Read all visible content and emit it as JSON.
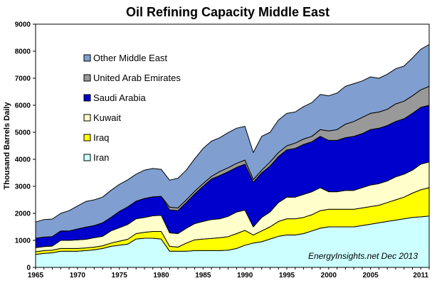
{
  "chart_data": {
    "type": "area",
    "stacked": true,
    "title": "Oil Refining Capacity Middle East",
    "ylabel": "Thousand Barrels Daily",
    "xlabel": "",
    "xlim": [
      1965,
      2012
    ],
    "ylim": [
      0,
      9000
    ],
    "yticks": [
      0,
      1000,
      2000,
      3000,
      4000,
      5000,
      6000,
      7000,
      8000,
      9000
    ],
    "xticks": [
      1965,
      1970,
      1975,
      1980,
      1985,
      1990,
      1995,
      2000,
      2005,
      2011
    ],
    "grid": false,
    "legend_position": "top-left",
    "annotation": "EnergyInsights.net  Dec 2013",
    "x": [
      1965,
      1966,
      1967,
      1968,
      1969,
      1970,
      1971,
      1972,
      1973,
      1974,
      1975,
      1976,
      1977,
      1978,
      1979,
      1980,
      1981,
      1982,
      1983,
      1984,
      1985,
      1986,
      1987,
      1988,
      1989,
      1990,
      1991,
      1992,
      1993,
      1994,
      1995,
      1996,
      1997,
      1998,
      1999,
      2000,
      2001,
      2002,
      2003,
      2004,
      2005,
      2006,
      2007,
      2008,
      2009,
      2010,
      2011,
      2012
    ],
    "series": [
      {
        "name": "Iran",
        "color": "#ccffff",
        "values": [
          480,
          520,
          540,
          600,
          600,
          600,
          620,
          650,
          700,
          780,
          820,
          860,
          1050,
          1080,
          1080,
          1050,
          600,
          600,
          600,
          620,
          620,
          620,
          620,
          640,
          700,
          820,
          900,
          950,
          1050,
          1150,
          1200,
          1200,
          1250,
          1350,
          1450,
          1500,
          1500,
          1500,
          1500,
          1550,
          1600,
          1650,
          1700,
          1750,
          1800,
          1850,
          1870,
          1900
        ]
      },
      {
        "name": "Iraq",
        "color": "#ffff00",
        "values": [
          100,
          100,
          100,
          100,
          100,
          100,
          100,
          100,
          100,
          120,
          150,
          180,
          200,
          220,
          250,
          280,
          180,
          150,
          300,
          400,
          430,
          450,
          480,
          500,
          550,
          550,
          300,
          400,
          450,
          550,
          600,
          600,
          600,
          600,
          650,
          650,
          650,
          650,
          650,
          650,
          650,
          650,
          700,
          750,
          800,
          900,
          1000,
          1050
        ]
      },
      {
        "name": "Kuwait",
        "color": "#ffffcc",
        "values": [
          150,
          150,
          150,
          300,
          300,
          320,
          320,
          350,
          350,
          450,
          500,
          550,
          550,
          550,
          580,
          600,
          500,
          500,
          550,
          600,
          650,
          700,
          700,
          750,
          800,
          750,
          300,
          500,
          550,
          700,
          800,
          800,
          850,
          850,
          850,
          650,
          650,
          700,
          700,
          750,
          800,
          800,
          800,
          850,
          850,
          850,
          950,
          950
        ]
      },
      {
        "name": "Saudi Arabia",
        "color": "#0000cc",
        "values": [
          350,
          350,
          350,
          350,
          350,
          400,
          450,
          450,
          500,
          500,
          600,
          650,
          650,
          700,
          700,
          700,
          850,
          850,
          950,
          1100,
          1300,
          1500,
          1600,
          1650,
          1650,
          1700,
          1650,
          1650,
          1700,
          1700,
          1750,
          1800,
          1850,
          1850,
          1900,
          1900,
          1900,
          1950,
          2000,
          2000,
          2050,
          2050,
          2050,
          2050,
          2050,
          2100,
          2100,
          2100
        ]
      },
      {
        "name": "United Arab Emirates",
        "color": "#999999",
        "values": [
          0,
          0,
          0,
          0,
          0,
          0,
          0,
          0,
          0,
          0,
          0,
          0,
          0,
          0,
          0,
          0,
          100,
          100,
          100,
          100,
          100,
          100,
          150,
          150,
          150,
          150,
          100,
          100,
          150,
          150,
          150,
          200,
          200,
          200,
          250,
          350,
          400,
          500,
          550,
          600,
          600,
          600,
          600,
          650,
          650,
          650,
          650,
          700
        ]
      },
      {
        "name": "Other Middle East",
        "color": "#809fd0",
        "values": [
          600,
          650,
          650,
          650,
          750,
          850,
          950,
          950,
          950,
          1000,
          1000,
          1000,
          1000,
          1050,
          1050,
          1000,
          1000,
          1100,
          1100,
          1200,
          1300,
          1300,
          1250,
          1300,
          1300,
          1250,
          1000,
          1250,
          1100,
          1200,
          1200,
          1150,
          1200,
          1250,
          1300,
          1300,
          1350,
          1400,
          1400,
          1350,
          1350,
          1250,
          1300,
          1300,
          1300,
          1400,
          1500,
          1550
        ]
      }
    ]
  }
}
